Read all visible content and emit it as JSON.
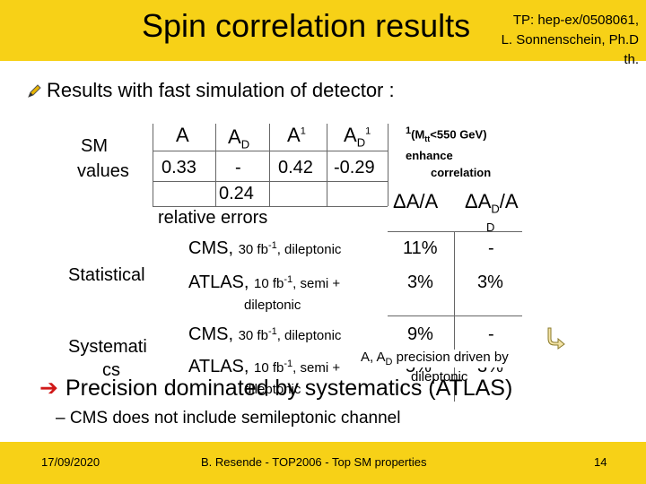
{
  "header": {
    "title": "Spin correlation results",
    "reference_lines": [
      "TP: hep-ex/0508061,",
      "L. Sonnenschein, Ph.D",
      "th."
    ]
  },
  "intro": "Results with fast simulation of detector :",
  "sm_table": {
    "row_label_line1": "SM",
    "row_label_line2": "values",
    "headers": [
      "A",
      "AD",
      "A1",
      "AD1"
    ],
    "values": [
      "0.33",
      "-",
      "0.42",
      "-0.29"
    ],
    "extra_value": "0.24"
  },
  "note": {
    "line1": "1(Mtt<550 GeV)",
    "line2": "enhance",
    "line3": "correlation"
  },
  "relative_errors_label": "relative errors",
  "result_headers": [
    "ΔA/A",
    "ΔAD/A",
    "D"
  ],
  "statistical": {
    "label": "Statistical",
    "rows": [
      {
        "exp": "CMS,",
        "detail": "30 fb-1, dileptonic",
        "dA": "11%",
        "dAD": "-"
      },
      {
        "exp": "ATLAS,",
        "detail": "10 fb-1, semi +",
        "detail2": "dileptonic",
        "dA": "3%",
        "dAD": "3%"
      }
    ]
  },
  "systematic": {
    "label_line1": "Systemati",
    "label_line2": "cs",
    "rows": [
      {
        "exp": "CMS,",
        "detail": "30 fb-1, dileptonic",
        "dA": "9%",
        "dAD": "-"
      },
      {
        "exp": "ATLAS,",
        "detail": "10 fb-1, semi +",
        "detail2": "dileptonic",
        "dA": "5%",
        "dAD": "3%"
      }
    ]
  },
  "callout": {
    "line1": "A, AD precision driven by",
    "line2": "dileptonic"
  },
  "conclusion": "Precision dominated by systematics (ATLAS)",
  "sub_bullet": "– CMS does not include semileptonic channel",
  "footer": {
    "date": "17/09/2020",
    "center": "B. Resende - TOP2006 - Top SM properties",
    "page": "14"
  }
}
